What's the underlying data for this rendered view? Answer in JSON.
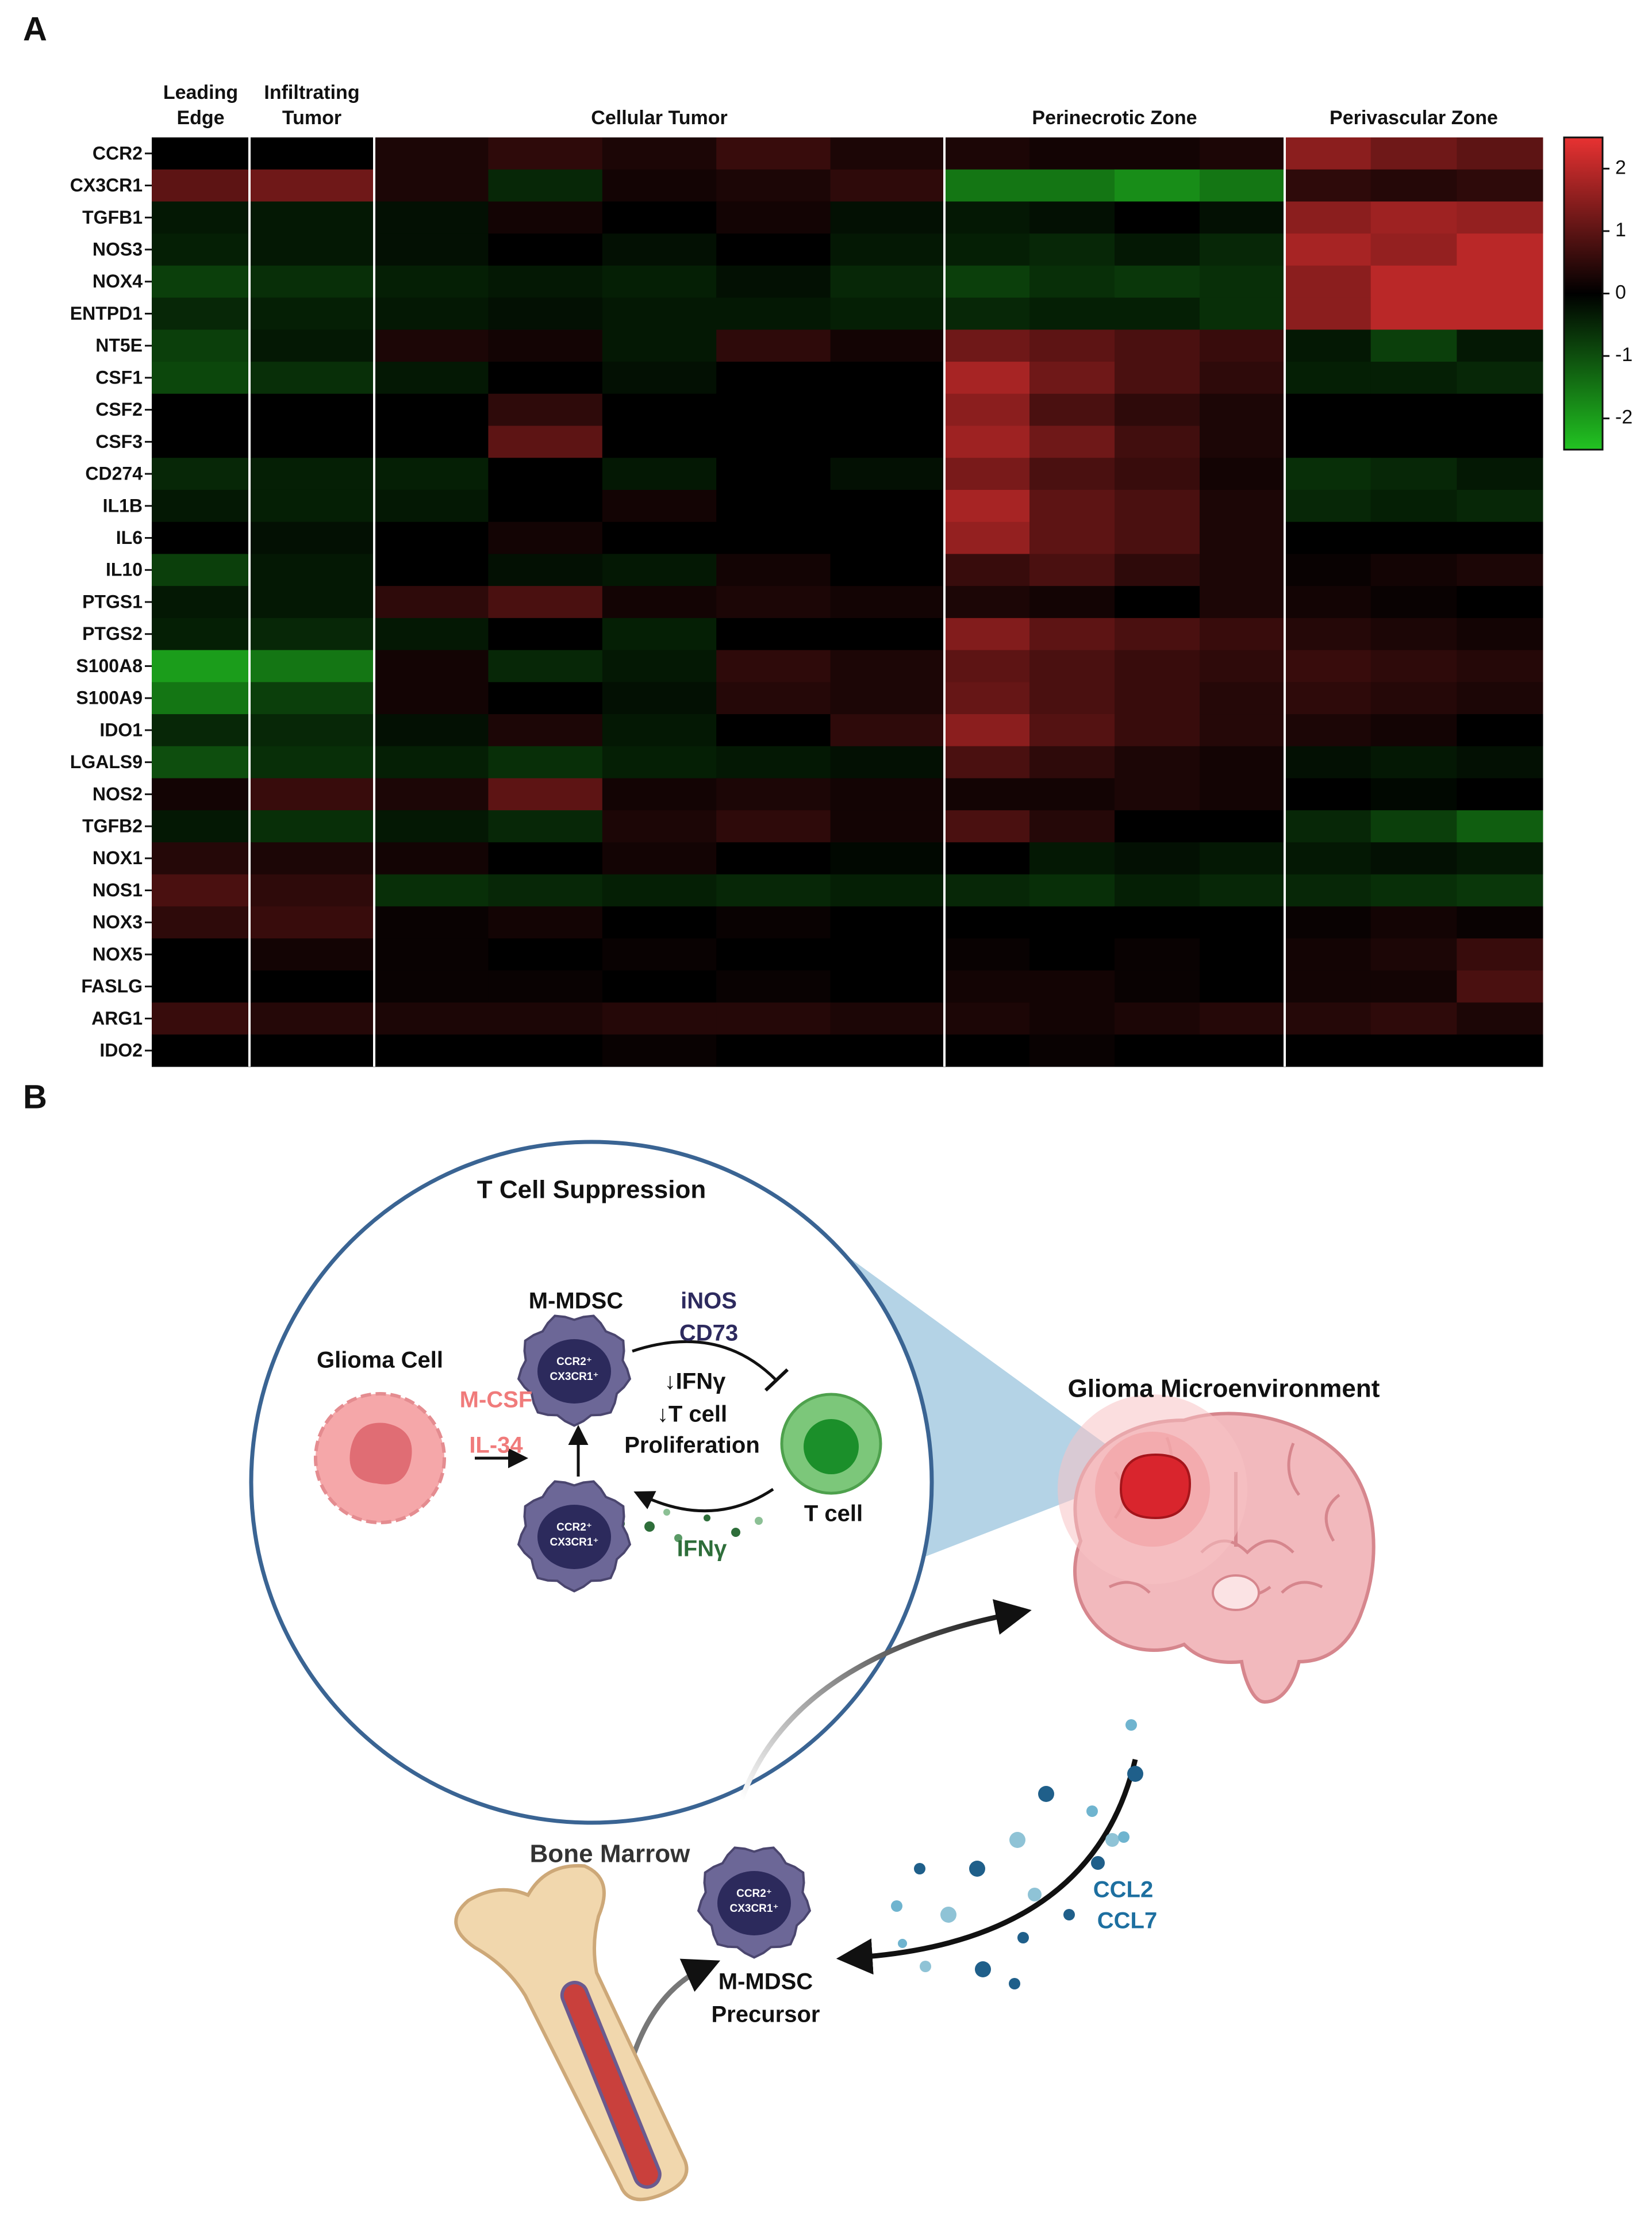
{
  "panel_labels": [
    "A",
    "B"
  ],
  "chart_data": {
    "type": "heatmap",
    "regions": [
      [
        "Leading",
        "Edge"
      ],
      [
        "Infiltrating",
        "Tumor"
      ],
      [
        "Cellular Tumor"
      ],
      [
        "Perinecrotic Zone"
      ],
      [
        "Perivascular Zone"
      ]
    ],
    "rows": [
      "CCR2",
      "CX3CR1",
      "TGFB1",
      "NOS3",
      "NOX4",
      "ENTPD1",
      "NT5E",
      "CSF1",
      "CSF2",
      "CSF3",
      "CD274",
      "IL1B",
      "IL6",
      "IL10",
      "PTGS1",
      "PTGS2",
      "S100A8",
      "S100A9",
      "IDO1",
      "LGALS9",
      "NOS2",
      "TGFB2",
      "NOX1",
      "NOS1",
      "NOX3",
      "NOX5",
      "FASLG",
      "ARG1",
      "IDO2"
    ],
    "values": [
      [
        [
          0
        ],
        [
          0
        ],
        [
          0.3,
          0.5,
          0.3,
          0.6,
          0.3
        ],
        [
          0.3,
          0.2,
          0.2,
          0.3
        ],
        [
          1.5,
          1.2,
          1.0
        ]
      ],
      [
        [
          1.0
        ],
        [
          1.2
        ],
        [
          0.3,
          -0.5,
          0.2,
          0.3,
          0.5
        ],
        [
          -1.5,
          -1.5,
          -1.8,
          -1.5
        ],
        [
          0.5,
          0.4,
          0.5
        ]
      ],
      [
        [
          -0.3
        ],
        [
          -0.3
        ],
        [
          -0.2,
          0.2,
          0,
          0.2,
          -0.2
        ],
        [
          -0.3,
          -0.2,
          0,
          -0.2
        ],
        [
          1.5,
          1.7,
          1.6
        ]
      ],
      [
        [
          -0.4
        ],
        [
          -0.3
        ],
        [
          -0.2,
          0,
          -0.2,
          0,
          -0.3
        ],
        [
          -0.4,
          -0.5,
          -0.3,
          -0.5
        ],
        [
          1.8,
          1.6,
          2.0
        ]
      ],
      [
        [
          -0.8
        ],
        [
          -0.6
        ],
        [
          -0.4,
          -0.3,
          -0.4,
          -0.2,
          -0.5
        ],
        [
          -0.8,
          -0.6,
          -0.7,
          -0.6
        ],
        [
          1.5,
          2.0,
          2.0
        ]
      ],
      [
        [
          -0.5
        ],
        [
          -0.4
        ],
        [
          -0.3,
          -0.2,
          -0.3,
          -0.3,
          -0.4
        ],
        [
          -0.5,
          -0.4,
          -0.4,
          -0.6
        ],
        [
          1.5,
          2.0,
          2.0
        ]
      ],
      [
        [
          -0.8
        ],
        [
          -0.3
        ],
        [
          0.3,
          0.2,
          -0.3,
          0.5,
          0.2
        ],
        [
          1.2,
          1.0,
          0.8,
          0.6
        ],
        [
          -0.3,
          -0.8,
          -0.3
        ]
      ],
      [
        [
          -0.9
        ],
        [
          -0.6
        ],
        [
          -0.3,
          0,
          -0.2,
          0,
          0
        ],
        [
          1.8,
          1.2,
          0.8,
          0.5
        ],
        [
          -0.4,
          -0.4,
          -0.5
        ]
      ],
      [
        [
          0
        ],
        [
          0
        ],
        [
          0,
          0.5,
          0,
          0,
          0
        ],
        [
          1.5,
          0.8,
          0.5,
          0.3
        ],
        [
          0,
          0,
          0
        ]
      ],
      [
        [
          0
        ],
        [
          0
        ],
        [
          0,
          1.0,
          0,
          0,
          0
        ],
        [
          1.7,
          1.2,
          0.7,
          0.3
        ],
        [
          0,
          0,
          0
        ]
      ],
      [
        [
          -0.5
        ],
        [
          -0.4
        ],
        [
          -0.4,
          0,
          -0.3,
          0,
          -0.2
        ],
        [
          1.3,
          0.8,
          0.6,
          0.2
        ],
        [
          -0.6,
          -0.5,
          -0.3
        ]
      ],
      [
        [
          -0.3
        ],
        [
          -0.4
        ],
        [
          -0.3,
          0,
          0.2,
          0,
          0
        ],
        [
          1.8,
          1.0,
          0.8,
          0.3
        ],
        [
          -0.5,
          -0.4,
          -0.5
        ]
      ],
      [
        [
          0
        ],
        [
          -0.2
        ],
        [
          0,
          0.2,
          0,
          0,
          0
        ],
        [
          1.6,
          1.0,
          0.8,
          0.3
        ],
        [
          0,
          0,
          0
        ]
      ],
      [
        [
          -0.8
        ],
        [
          -0.3
        ],
        [
          0,
          -0.2,
          -0.3,
          0.2,
          0
        ],
        [
          0.6,
          0.8,
          0.5,
          0.3
        ],
        [
          0.1,
          0.2,
          0.3
        ]
      ],
      [
        [
          -0.3
        ],
        [
          -0.3
        ],
        [
          0.5,
          0.8,
          0.2,
          0.3,
          0.2
        ],
        [
          0.3,
          0.2,
          0,
          0.3
        ],
        [
          0.2,
          0.1,
          0
        ]
      ],
      [
        [
          -0.4
        ],
        [
          -0.5
        ],
        [
          -0.3,
          0,
          -0.4,
          0,
          0
        ],
        [
          1.4,
          1.0,
          0.8,
          0.6
        ],
        [
          0.4,
          0.3,
          0.2
        ]
      ],
      [
        [
          -2.0
        ],
        [
          -1.5
        ],
        [
          0.2,
          -0.5,
          -0.3,
          0.5,
          0.3
        ],
        [
          1.0,
          0.8,
          0.6,
          0.5
        ],
        [
          0.6,
          0.5,
          0.4
        ]
      ],
      [
        [
          -1.5
        ],
        [
          -0.8
        ],
        [
          0.2,
          0,
          -0.2,
          0.4,
          0.3
        ],
        [
          1.1,
          0.8,
          0.6,
          0.4
        ],
        [
          0.5,
          0.4,
          0.3
        ]
      ],
      [
        [
          -0.5
        ],
        [
          -0.5
        ],
        [
          -0.2,
          0.3,
          -0.3,
          0,
          0.5
        ],
        [
          1.5,
          0.9,
          0.6,
          0.4
        ],
        [
          0.3,
          0.2,
          0
        ]
      ],
      [
        [
          -1.0
        ],
        [
          -0.6
        ],
        [
          -0.4,
          -0.6,
          -0.4,
          -0.3,
          -0.2
        ],
        [
          0.8,
          0.5,
          0.3,
          0.2
        ],
        [
          -0.2,
          -0.3,
          -0.2
        ]
      ],
      [
        [
          0.2
        ],
        [
          0.6
        ],
        [
          0.3,
          1.0,
          0.2,
          0.3,
          0.2
        ],
        [
          0.2,
          0.2,
          0.3,
          0.2
        ],
        [
          0,
          -0.1,
          0
        ]
      ],
      [
        [
          -0.3
        ],
        [
          -0.6
        ],
        [
          -0.3,
          -0.5,
          0.3,
          0.5,
          0.2
        ],
        [
          0.8,
          0.4,
          0,
          0
        ],
        [
          -0.5,
          -0.8,
          -1.2
        ]
      ],
      [
        [
          0.4
        ],
        [
          0.3
        ],
        [
          0.2,
          0,
          0.2,
          0,
          -0.1
        ],
        [
          0,
          -0.3,
          -0.2,
          -0.3
        ],
        [
          -0.3,
          -0.2,
          -0.3
        ]
      ],
      [
        [
          0.8
        ],
        [
          0.5
        ],
        [
          -0.6,
          -0.5,
          -0.4,
          -0.5,
          -0.4
        ],
        [
          -0.5,
          -0.6,
          -0.4,
          -0.5
        ],
        [
          -0.5,
          -0.6,
          -0.7
        ]
      ],
      [
        [
          0.5
        ],
        [
          0.6
        ],
        [
          0.1,
          0.2,
          0,
          0.1,
          0
        ],
        [
          0,
          0,
          0,
          0
        ],
        [
          0.1,
          0.2,
          0.1
        ]
      ],
      [
        [
          0
        ],
        [
          0.2
        ],
        [
          0.1,
          0,
          0.1,
          0,
          0
        ],
        [
          0.1,
          0,
          0.1,
          0
        ],
        [
          0.2,
          0.3,
          0.6
        ]
      ],
      [
        [
          0
        ],
        [
          0
        ],
        [
          0.1,
          0.1,
          0,
          0.1,
          0
        ],
        [
          0.2,
          0.2,
          0.1,
          0
        ],
        [
          0.2,
          0.2,
          0.8
        ]
      ],
      [
        [
          0.6
        ],
        [
          0.4
        ],
        [
          0.3,
          0.3,
          0.4,
          0.4,
          0.3
        ],
        [
          0.3,
          0.2,
          0.3,
          0.4
        ],
        [
          0.4,
          0.5,
          0.3
        ]
      ],
      [
        [
          0
        ],
        [
          0
        ],
        [
          0,
          0,
          0.1,
          0,
          0
        ],
        [
          0,
          0.1,
          0,
          0
        ],
        [
          0,
          0,
          0
        ]
      ]
    ],
    "clim": [
      -2.5,
      2.5
    ],
    "cticks": [
      2,
      1,
      0,
      -1,
      -2
    ]
  },
  "diagram": {
    "title": "T Cell Suppression",
    "glioma_cell": "Glioma Cell",
    "m_mdsc": "M-MDSC",
    "factors": [
      "M-CSF",
      "IL-34"
    ],
    "suppressors": [
      "iNOS",
      "CD73"
    ],
    "effects": [
      "↓IFNγ",
      "↓T cell",
      "Proliferation"
    ],
    "ifn": "IFNγ",
    "t_cell": "T cell",
    "microenvironment": "Glioma Microenvironment",
    "bone_marrow": "Bone Marrow",
    "precursor": [
      "M-MDSC",
      "Precursor"
    ],
    "chemokines": [
      "CCL2",
      "CCL7"
    ],
    "markers": [
      "CCR2⁺",
      "CX3CR1⁺"
    ]
  }
}
